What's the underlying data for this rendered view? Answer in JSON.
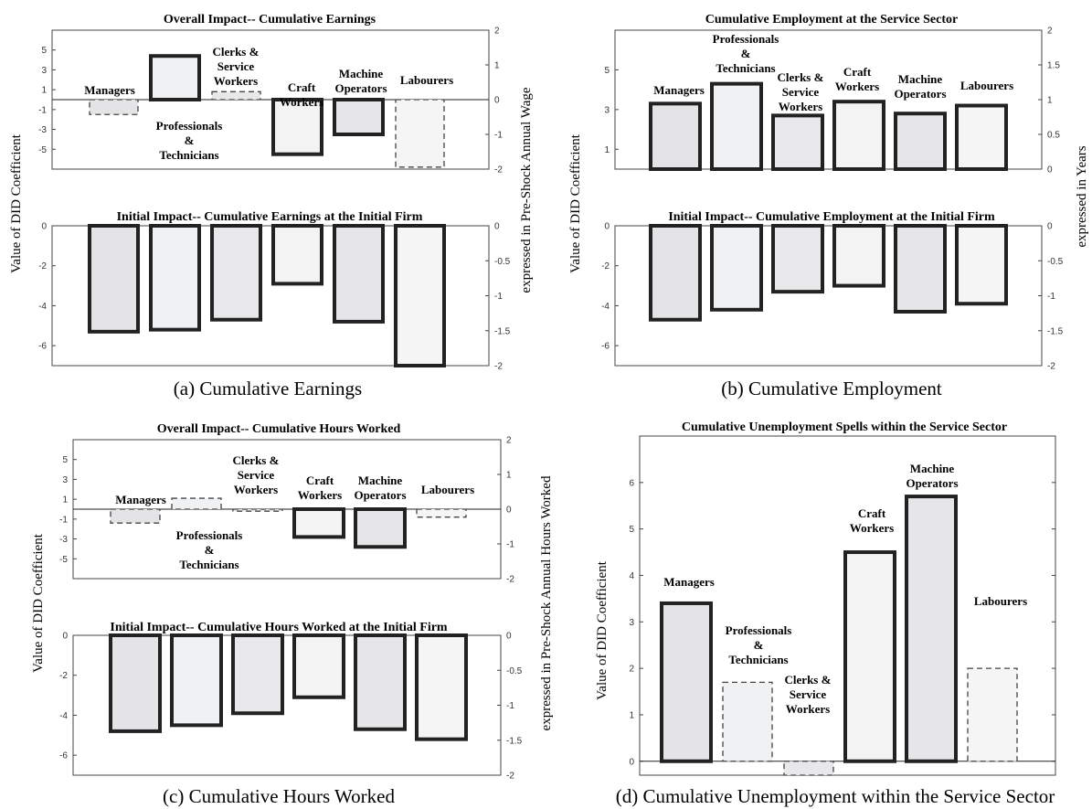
{
  "figure_captions": {
    "a": "(a) Cumulative Earnings",
    "b": "(b) Cumulative Employment",
    "c": "(c) Cumulative Hours Worked",
    "d": "(d) Cumulative Unemployment within the Service Sector"
  },
  "chart_data": [
    {
      "id": "a-top",
      "type": "bar",
      "title": "Overall Impact-- Cumulative Earnings",
      "ylabel": "Value of DID Coefficient",
      "y2label": "expressed in Pre-Shock Annual Wage",
      "ylim": [
        -7,
        7
      ],
      "yticks": [
        -5,
        -3,
        -1,
        1,
        3,
        5
      ],
      "y2lim": [
        -2,
        2
      ],
      "y2ticks": [
        -2,
        -1,
        0,
        1,
        2
      ],
      "categories": [
        "Managers",
        "Professionals & Technicians",
        "Clerks & Service Workers",
        "Craft Workers",
        "Machine Operators",
        "Labourers"
      ],
      "values": [
        -1.5,
        4.4,
        0.8,
        -5.5,
        -3.5,
        -6.8
      ],
      "significant": [
        false,
        true,
        false,
        true,
        true,
        false
      ]
    },
    {
      "id": "a-bottom",
      "type": "bar",
      "title": "Initial Impact-- Cumulative Earnings at the Initial Firm",
      "ylim": [
        -7,
        0
      ],
      "yticks": [
        -6,
        -4,
        -2,
        0
      ],
      "y2lim": [
        -2,
        0
      ],
      "y2ticks": [
        -2,
        -1.5,
        -1,
        -0.5,
        0
      ],
      "categories": [
        "Managers",
        "Professionals & Technicians",
        "Clerks & Service Workers",
        "Craft Workers",
        "Machine Operators",
        "Labourers"
      ],
      "values": [
        -5.3,
        -5.2,
        -4.7,
        -2.9,
        -4.8,
        -7.0
      ],
      "significant": [
        true,
        true,
        true,
        true,
        true,
        true
      ]
    },
    {
      "id": "b-top",
      "type": "bar",
      "title": "Cumulative Employment at the Service Sector",
      "ylabel": "Value of DID Coefficient",
      "y2label": "expressed in Years",
      "ylim": [
        0,
        7
      ],
      "yticks": [
        1,
        3,
        5
      ],
      "y2lim": [
        0,
        2
      ],
      "y2ticks": [
        0,
        0.5,
        1,
        1.5,
        2
      ],
      "categories": [
        "Managers",
        "Professionals & Technicians",
        "Clerks & Service Workers",
        "Craft Workers",
        "Machine Operators",
        "Labourers"
      ],
      "values": [
        3.3,
        4.3,
        2.7,
        3.4,
        2.8,
        3.2
      ],
      "significant": [
        true,
        true,
        true,
        true,
        true,
        true
      ]
    },
    {
      "id": "b-bottom",
      "type": "bar",
      "title": "Initial Impact-- Cumulative Employment at the Initial Firm",
      "ylim": [
        -7,
        0
      ],
      "yticks": [
        -6,
        -4,
        -2,
        0
      ],
      "y2lim": [
        -2,
        0
      ],
      "y2ticks": [
        -2,
        -1.5,
        -1,
        -0.5,
        0
      ],
      "categories": [
        "Managers",
        "Professionals & Technicians",
        "Clerks & Service Workers",
        "Craft Workers",
        "Machine Operators",
        "Labourers"
      ],
      "values": [
        -4.7,
        -4.2,
        -3.3,
        -3.0,
        -4.3,
        -3.9
      ],
      "significant": [
        true,
        true,
        true,
        true,
        true,
        true
      ]
    },
    {
      "id": "c-top",
      "type": "bar",
      "title": "Overall Impact-- Cumulative Hours Worked",
      "ylabel": "Value of DID Coefficient",
      "y2label": "expressed in Pre-Shock Annual Hours Worked",
      "ylim": [
        -7,
        7
      ],
      "yticks": [
        -5,
        -3,
        -1,
        1,
        3,
        5
      ],
      "y2lim": [
        -2,
        2
      ],
      "y2ticks": [
        -2,
        -1,
        0,
        1,
        2
      ],
      "categories": [
        "Managers",
        "Professionals & Technicians",
        "Clerks & Service Workers",
        "Craft Workers",
        "Machine Operators",
        "Labourers"
      ],
      "values": [
        -1.4,
        1.1,
        -0.2,
        -2.8,
        -3.8,
        -0.8
      ],
      "significant": [
        false,
        false,
        false,
        true,
        true,
        false
      ]
    },
    {
      "id": "c-bottom",
      "type": "bar",
      "title": "Initial Impact-- Cumulative Hours Worked at the Initial Firm",
      "ylim": [
        -7,
        0
      ],
      "yticks": [
        -6,
        -4,
        -2,
        0
      ],
      "y2lim": [
        -2,
        0
      ],
      "y2ticks": [
        -2,
        -1.5,
        -1,
        -0.5,
        0
      ],
      "categories": [
        "Managers",
        "Professionals & Technicians",
        "Clerks & Service Workers",
        "Craft Workers",
        "Machine Operators",
        "Labourers"
      ],
      "values": [
        -4.8,
        -4.5,
        -3.9,
        -3.1,
        -4.7,
        -5.2
      ],
      "significant": [
        true,
        true,
        true,
        true,
        true,
        true
      ]
    },
    {
      "id": "d",
      "type": "bar",
      "title": "Cumulative Unemployment Spells within the Service Sector",
      "ylabel": "Value of DID Coefficient",
      "ylim": [
        -0.3,
        7.0
      ],
      "yticks": [
        0,
        1,
        2,
        3,
        4,
        5,
        6
      ],
      "categories": [
        "Managers",
        "Professionals & Technicians",
        "Clerks & Service Workers",
        "Craft Workers",
        "Machine Operators",
        "Labourers"
      ],
      "values": [
        3.4,
        1.7,
        -0.3,
        4.5,
        5.7,
        2.0
      ],
      "significant": [
        true,
        false,
        false,
        true,
        true,
        false
      ]
    }
  ]
}
